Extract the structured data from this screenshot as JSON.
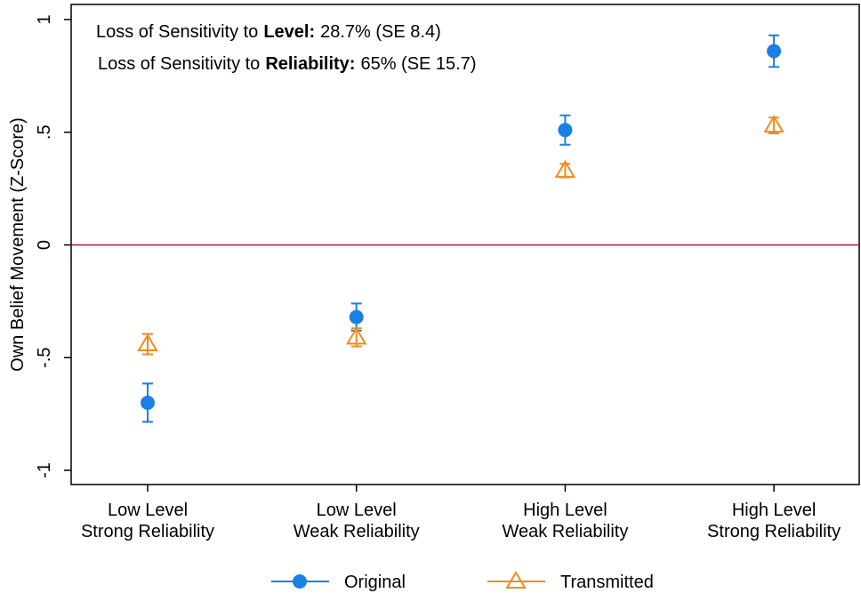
{
  "chart_data": {
    "type": "scatter",
    "annotations": [
      {
        "parts": [
          "Loss of Sensitivity to",
          "Level:",
          "28.7% (SE 8.4)"
        ]
      },
      {
        "parts": [
          "Loss of Sensitivity to",
          "Reliability:",
          "65% (SE 15.7)"
        ]
      }
    ],
    "y_label": "Own Belief Movement (Z-Score)",
    "categories": [
      [
        "Low Level",
        "Strong Reliability"
      ],
      [
        "Low Level",
        "Weak Reliability"
      ],
      [
        "High Level",
        "Weak Reliability"
      ],
      [
        "High Level",
        "Strong Reliability"
      ]
    ],
    "series": [
      {
        "name": "Original",
        "color": "#1a80e6",
        "marker": "circle",
        "values": [
          -0.7,
          -0.32,
          0.51,
          0.86
        ],
        "errors": [
          0.085,
          0.06,
          0.065,
          0.07
        ]
      },
      {
        "name": "Transmitted",
        "color": "#f08c1e",
        "marker": "triangle",
        "values": [
          -0.44,
          -0.41,
          0.33,
          0.53
        ],
        "errors": [
          0.045,
          0.04,
          0.03,
          0.035
        ]
      }
    ],
    "ylim": [
      -1.063,
      1.067
    ],
    "yticks": [
      1,
      {
        "value": 0.5,
        "label": ".5"
      },
      0,
      {
        "value": -0.5,
        "label": "-.5"
      },
      -1
    ],
    "refline": 0,
    "refline_color": "#b0103a"
  }
}
